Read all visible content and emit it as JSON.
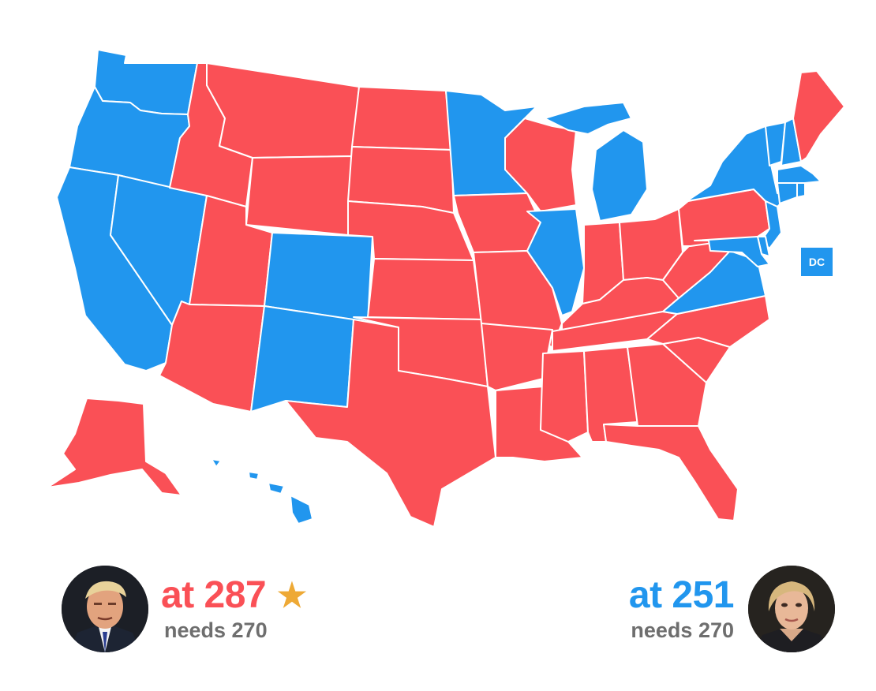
{
  "colors": {
    "republican": "#fa5056",
    "democrat": "#2196ee",
    "needs_text": "#6e6e6e",
    "star": "#eea935"
  },
  "dc_label": "DC",
  "states": {
    "WA": "democrat",
    "OR": "democrat",
    "CA": "democrat",
    "NV": "democrat",
    "ID": "republican",
    "MT": "republican",
    "WY": "republican",
    "UT": "republican",
    "AZ": "republican",
    "CO": "democrat",
    "NM": "democrat",
    "ND": "republican",
    "SD": "republican",
    "NE": "republican",
    "KS": "republican",
    "OK": "republican",
    "TX": "republican",
    "MN": "democrat",
    "IA": "republican",
    "MO": "republican",
    "AR": "republican",
    "LA": "republican",
    "WI": "republican",
    "IL": "democrat",
    "MI": "democrat",
    "IN": "republican",
    "OH": "republican",
    "KY": "republican",
    "TN": "republican",
    "MS": "republican",
    "AL": "republican",
    "GA": "republican",
    "FL": "republican",
    "SC": "republican",
    "NC": "republican",
    "VA": "democrat",
    "WV": "republican",
    "PA": "republican",
    "NY": "democrat",
    "VT": "democrat",
    "NH": "democrat",
    "ME": "republican",
    "MA": "democrat",
    "CT": "democrat",
    "RI": "democrat",
    "NJ": "democrat",
    "DE": "democrat",
    "MD": "democrat",
    "AK": "republican",
    "HI": "democrat",
    "DC": "democrat"
  },
  "candidates": {
    "left": {
      "votes_text": "at 287",
      "needs_text": "needs 270",
      "party": "republican",
      "star": "★",
      "avatar": "trump-avatar"
    },
    "right": {
      "votes_text": "at 251",
      "needs_text": "needs 270",
      "party": "democrat",
      "avatar": "clinton-avatar"
    }
  }
}
